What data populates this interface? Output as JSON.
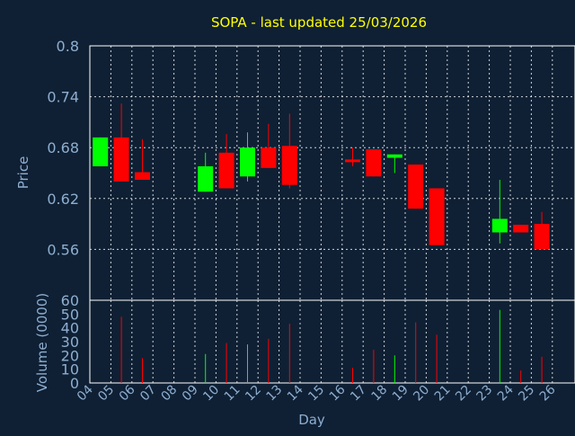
{
  "chart_data": {
    "type": "candlestick",
    "title": "SOPA - last updated 25/03/2026",
    "xlabel": "Day",
    "colors": {
      "background": "#0f2034",
      "title": "#ffff00",
      "axis_text": "#8eaed0",
      "frame": "#ffffff",
      "grid": "#ffffff",
      "up": "#00ff00",
      "down": "#ff0000"
    },
    "x_ticks": [
      "04",
      "05",
      "06",
      "07",
      "08",
      "09",
      "10",
      "11",
      "12",
      "13",
      "14",
      "15",
      "16",
      "17",
      "18",
      "19",
      "20",
      "21",
      "22",
      "23",
      "24",
      "25",
      "26"
    ],
    "price_panel": {
      "ylabel": "Price",
      "ylim": [
        0.5,
        0.8
      ],
      "y_ticks": [
        "0.8",
        "0.74",
        "0.68",
        "0.62",
        "0.56"
      ],
      "candles": [
        {
          "day": "04",
          "open": 0.658,
          "high": 0.692,
          "low": 0.658,
          "close": 0.692
        },
        {
          "day": "05",
          "open": 0.692,
          "high": 0.732,
          "low": 0.64,
          "close": 0.64
        },
        {
          "day": "06",
          "open": 0.651,
          "high": 0.69,
          "low": 0.642,
          "close": 0.642
        },
        {
          "day": "09",
          "open": 0.628,
          "high": 0.674,
          "low": 0.628,
          "close": 0.658
        },
        {
          "day": "10",
          "open": 0.674,
          "high": 0.696,
          "low": 0.632,
          "close": 0.632
        },
        {
          "day": "11",
          "open": 0.646,
          "high": 0.698,
          "low": 0.64,
          "close": 0.68
        },
        {
          "day": "12",
          "open": 0.68,
          "high": 0.708,
          "low": 0.656,
          "close": 0.656
        },
        {
          "day": "13",
          "open": 0.682,
          "high": 0.72,
          "low": 0.632,
          "close": 0.636
        },
        {
          "day": "16",
          "open": 0.666,
          "high": 0.68,
          "low": 0.658,
          "close": 0.664
        },
        {
          "day": "17",
          "open": 0.678,
          "high": 0.678,
          "low": 0.646,
          "close": 0.646
        },
        {
          "day": "18",
          "open": 0.668,
          "high": 0.672,
          "low": 0.65,
          "close": 0.672
        },
        {
          "day": "19",
          "open": 0.66,
          "high": 0.66,
          "low": 0.608,
          "close": 0.608
        },
        {
          "day": "20",
          "open": 0.632,
          "high": 0.632,
          "low": 0.565,
          "close": 0.565
        },
        {
          "day": "23",
          "open": 0.58,
          "high": 0.642,
          "low": 0.567,
          "close": 0.596
        },
        {
          "day": "24",
          "open": 0.589,
          "high": 0.589,
          "low": 0.58,
          "close": 0.58
        },
        {
          "day": "25",
          "open": 0.59,
          "high": 0.604,
          "low": 0.56,
          "close": 0.56
        }
      ]
    },
    "volume_panel": {
      "ylabel": "Volume (0000)",
      "ylim": [
        0,
        60
      ],
      "y_ticks": [
        "60",
        "50",
        "40",
        "30",
        "20",
        "10",
        "0"
      ],
      "bars": [
        {
          "day": "05",
          "value": 48,
          "dir": "down"
        },
        {
          "day": "06",
          "value": 18,
          "dir": "down"
        },
        {
          "day": "09",
          "value": 21,
          "dir": "up"
        },
        {
          "day": "10",
          "value": 29,
          "dir": "down"
        },
        {
          "day": "11",
          "value": 28,
          "dir": "up"
        },
        {
          "day": "12",
          "value": 32,
          "dir": "down"
        },
        {
          "day": "13",
          "value": 43,
          "dir": "down"
        },
        {
          "day": "16",
          "value": 11,
          "dir": "down"
        },
        {
          "day": "17",
          "value": 24,
          "dir": "down"
        },
        {
          "day": "18",
          "value": 20,
          "dir": "up"
        },
        {
          "day": "19",
          "value": 44,
          "dir": "down"
        },
        {
          "day": "20",
          "value": 35,
          "dir": "down"
        },
        {
          "day": "23",
          "value": 53,
          "dir": "up"
        },
        {
          "day": "24",
          "value": 9,
          "dir": "down"
        },
        {
          "day": "25",
          "value": 19,
          "dir": "down"
        }
      ]
    }
  }
}
